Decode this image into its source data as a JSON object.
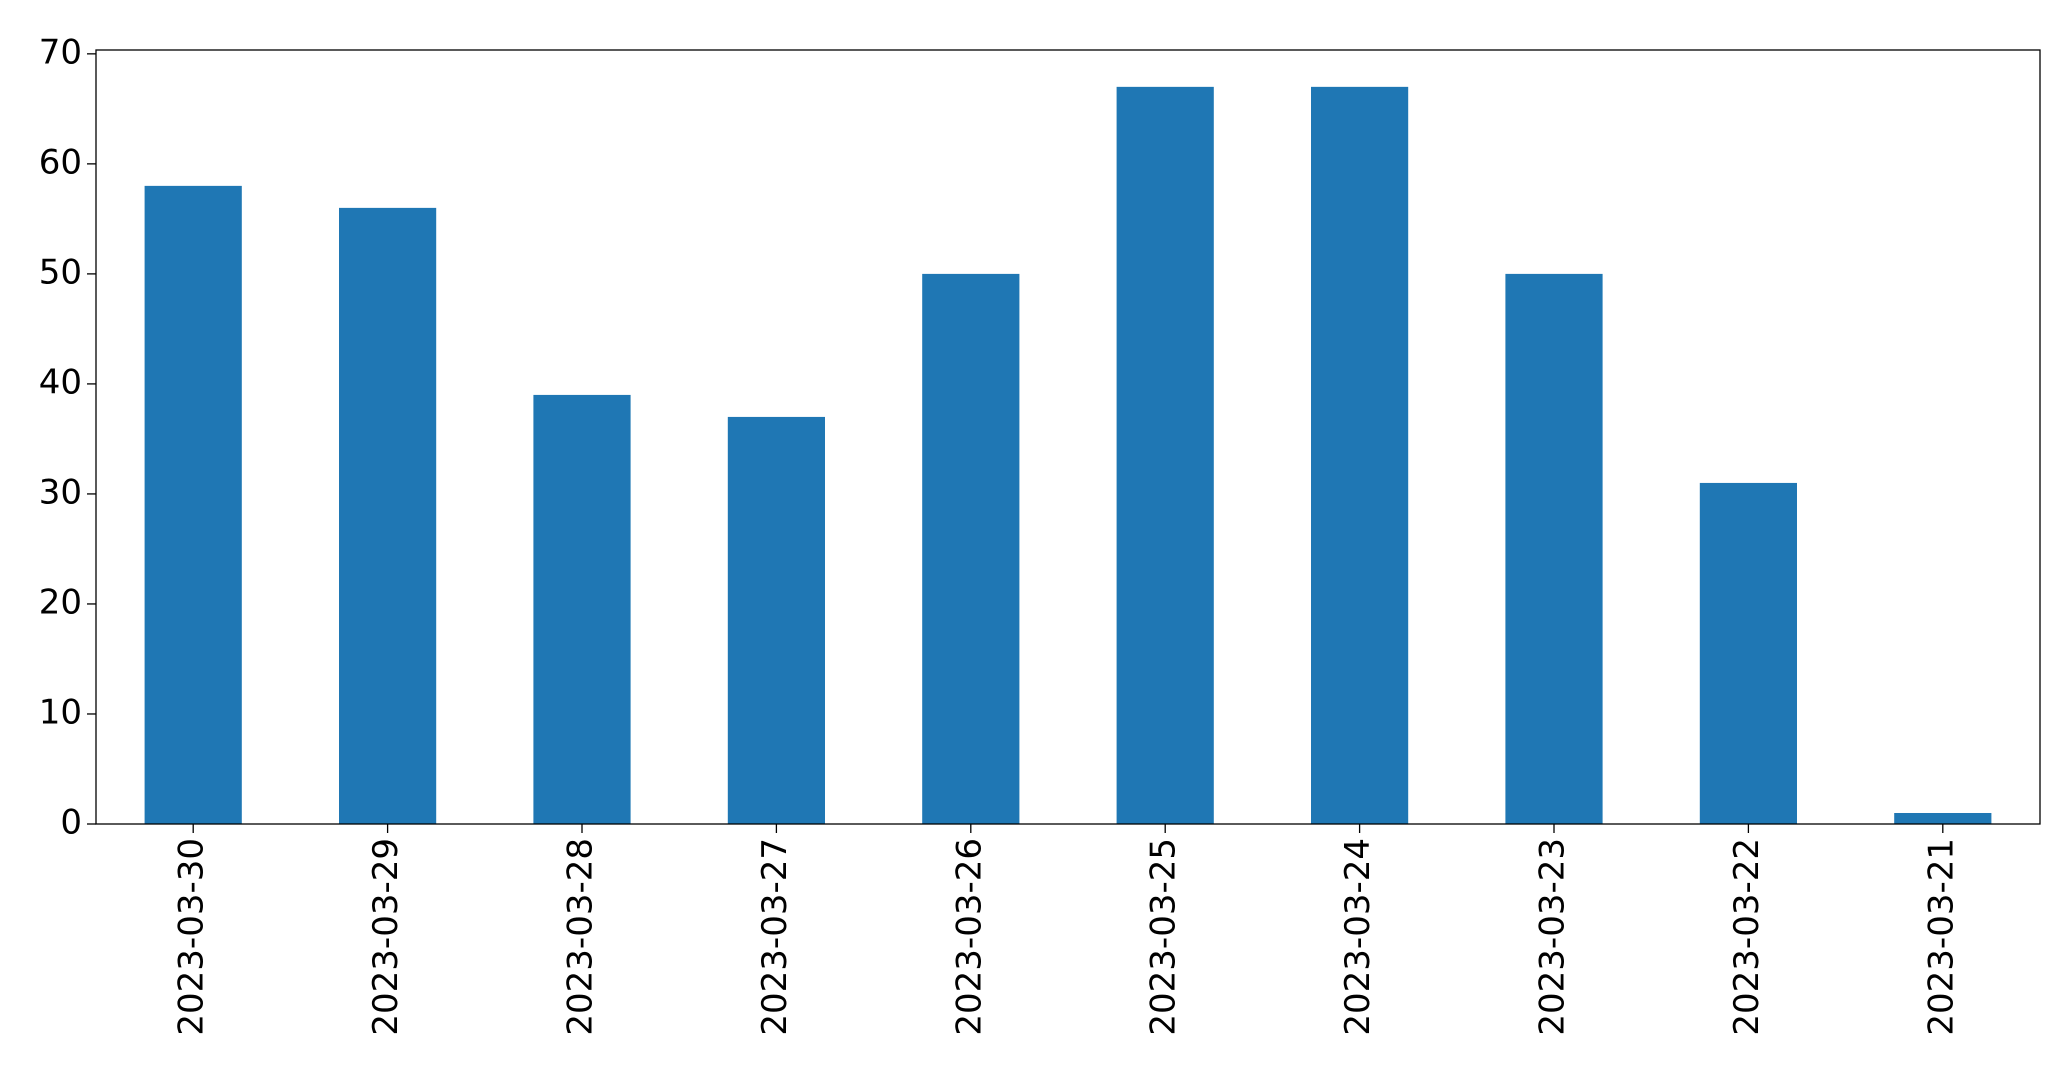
{
  "chart_data": {
    "type": "bar",
    "categories": [
      "2023-03-30",
      "2023-03-29",
      "2023-03-28",
      "2023-03-27",
      "2023-03-26",
      "2023-03-25",
      "2023-03-24",
      "2023-03-23",
      "2023-03-22",
      "2023-03-21"
    ],
    "values": [
      58,
      56,
      39,
      37,
      50,
      67,
      67,
      50,
      31,
      1
    ],
    "color": "#1f77b4",
    "ylim": [
      0,
      70.35
    ],
    "yticks": [
      0,
      10,
      20,
      30,
      40,
      50,
      60,
      70
    ],
    "grid": false
  }
}
